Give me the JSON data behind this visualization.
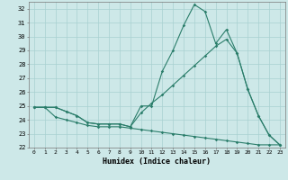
{
  "xlabel": "Humidex (Indice chaleur)",
  "x": [
    0,
    1,
    2,
    3,
    4,
    5,
    6,
    7,
    8,
    9,
    10,
    11,
    12,
    13,
    14,
    15,
    16,
    17,
    18,
    19,
    20,
    21,
    22,
    23
  ],
  "line1": [
    24.9,
    24.9,
    24.9,
    24.6,
    24.3,
    23.8,
    23.7,
    23.7,
    23.7,
    23.5,
    25.0,
    25.0,
    27.5,
    29.0,
    30.8,
    32.3,
    31.8,
    29.5,
    30.5,
    28.8,
    26.2,
    24.3,
    22.9,
    22.2
  ],
  "line2": [
    24.9,
    24.9,
    24.9,
    24.6,
    24.3,
    23.8,
    23.7,
    23.7,
    23.7,
    23.5,
    24.5,
    25.2,
    25.8,
    26.5,
    27.2,
    27.9,
    28.6,
    29.3,
    29.8,
    28.8,
    26.2,
    24.3,
    22.9,
    22.2
  ],
  "line3": [
    24.9,
    24.9,
    24.2,
    24.0,
    23.8,
    23.6,
    23.5,
    23.5,
    23.5,
    23.4,
    23.3,
    23.2,
    23.1,
    23.0,
    22.9,
    22.8,
    22.7,
    22.6,
    22.5,
    22.4,
    22.3,
    22.2,
    22.2,
    22.2
  ],
  "ylim": [
    22,
    32.5
  ],
  "xlim": [
    -0.5,
    23.5
  ],
  "yticks": [
    22,
    23,
    24,
    25,
    26,
    27,
    28,
    29,
    30,
    31,
    32
  ],
  "xticks": [
    0,
    1,
    2,
    3,
    4,
    5,
    6,
    7,
    8,
    9,
    10,
    11,
    12,
    13,
    14,
    15,
    16,
    17,
    18,
    19,
    20,
    21,
    22,
    23
  ],
  "line_color": "#2a7d6a",
  "bg_color": "#cde8e8",
  "grid_color": "#a8d0d0"
}
